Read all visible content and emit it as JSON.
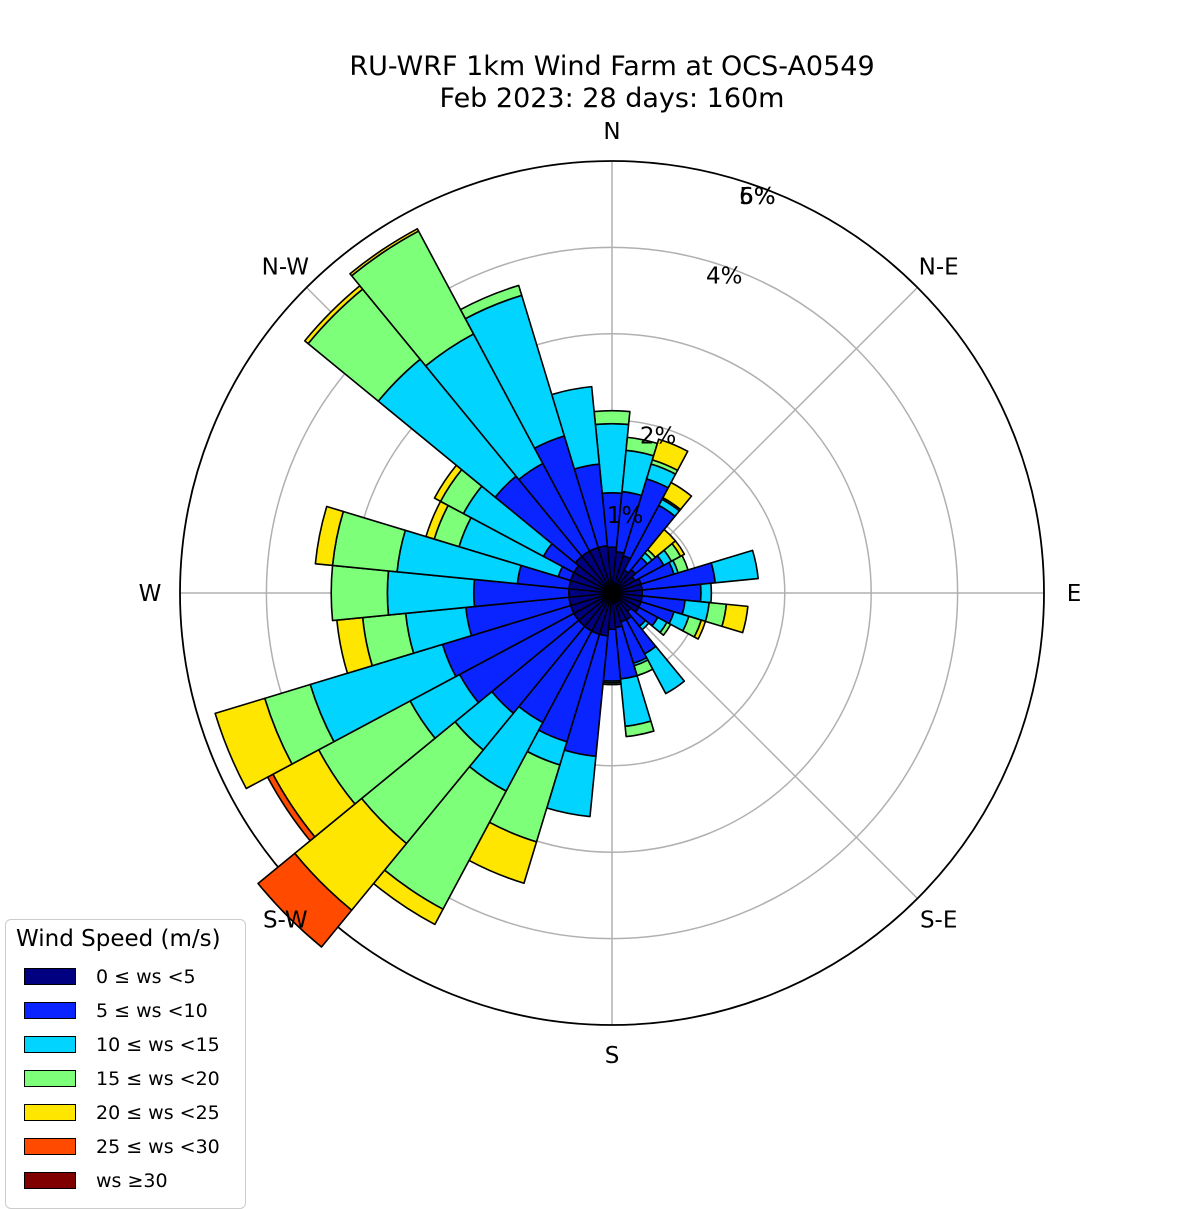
{
  "chart_data": {
    "type": "windrose",
    "title": "RU-WRF 1km Wind Farm at OCS-A0549",
    "subtitle": "Feb 2023: 28 days: 160m",
    "direction_labels": [
      "N",
      "N-E",
      "E",
      "S-E",
      "S",
      "S-W",
      "W",
      "N-W"
    ],
    "radial_ticks": [
      {
        "value": 1,
        "label": "1%"
      },
      {
        "value": 2,
        "label": "2%"
      },
      {
        "value": 4,
        "label": "4%"
      },
      {
        "value": 5,
        "label": "5%"
      },
      {
        "value": 6,
        "label": "6%"
      }
    ],
    "legend_title": "Wind Speed (m/s)",
    "speed_bins": [
      {
        "label": "0 ≤  ws <5",
        "color": "#000080"
      },
      {
        "label": "5 ≤  ws <10",
        "color": "#0a24ff"
      },
      {
        "label": "10 ≤  ws <15",
        "color": "#00d4ff"
      },
      {
        "label": "15 ≤  ws <20",
        "color": "#7dff7a"
      },
      {
        "label": "20 ≤  ws <25",
        "color": "#ffe600"
      },
      {
        "label": "25 ≤  ws <30",
        "color": "#ff4a00"
      },
      {
        "label": "ws  ≥30",
        "color": "#800000"
      }
    ],
    "units": "percent of observations",
    "sector_width_deg": 11.25,
    "sectors": [
      {
        "dir": 0,
        "values": [
          0.53,
          0.63,
          0.8,
          0.15,
          0,
          0,
          0
        ]
      },
      {
        "dir": 11.25,
        "values": [
          0.48,
          0.7,
          0.48,
          0.15,
          0,
          0,
          0
        ]
      },
      {
        "dir": 22.5,
        "values": [
          0.45,
          0.93,
          0.18,
          0.05,
          0.25,
          0,
          0
        ]
      },
      {
        "dir": 33.75,
        "values": [
          0.3,
          0.85,
          0.08,
          0.02,
          0.2,
          0,
          0
        ]
      },
      {
        "dir": 45,
        "values": [
          0.35,
          0.18,
          0.07,
          0.05,
          0.3,
          0,
          0
        ]
      },
      {
        "dir": 56.25,
        "values": [
          0.3,
          0.38,
          0.1,
          0.12,
          0.05,
          0,
          0
        ]
      },
      {
        "dir": 67.5,
        "values": [
          0.35,
          0.4,
          0.05,
          0.12,
          0,
          0,
          0
        ]
      },
      {
        "dir": 78.75,
        "values": [
          0.35,
          0.85,
          0.5,
          0,
          0,
          0,
          0
        ]
      },
      {
        "dir": 90,
        "values": [
          0.35,
          0.68,
          0.12,
          0,
          0,
          0,
          0
        ]
      },
      {
        "dir": 101.25,
        "values": [
          0.35,
          0.5,
          0.28,
          0.2,
          0.25,
          0,
          0
        ]
      },
      {
        "dir": 112.5,
        "values": [
          0.35,
          0.4,
          0.18,
          0.15,
          0.05,
          0,
          0
        ]
      },
      {
        "dir": 123.75,
        "values": [
          0.35,
          0.25,
          0.12,
          0.05,
          0,
          0,
          0
        ]
      },
      {
        "dir": 135,
        "values": [
          0.28,
          0.22,
          0.05,
          0,
          0,
          0,
          0
        ]
      },
      {
        "dir": 146.25,
        "values": [
          0.35,
          0.45,
          0.52,
          0,
          0,
          0,
          0
        ]
      },
      {
        "dir": 157.5,
        "values": [
          0.35,
          0.5,
          0.03,
          0.12,
          0,
          0,
          0
        ]
      },
      {
        "dir": 168.75,
        "values": [
          0.4,
          0.6,
          0.55,
          0.12,
          0,
          0,
          0
        ]
      },
      {
        "dir": 180,
        "values": [
          0.42,
          0.6,
          0.02,
          0.02,
          0,
          0,
          0
        ]
      },
      {
        "dir": 191.25,
        "values": [
          0.5,
          1.4,
          0.7,
          0,
          0,
          0,
          0
        ]
      },
      {
        "dir": 202.5,
        "values": [
          0.5,
          1.3,
          0.28,
          0.93,
          0.5,
          0,
          0
        ]
      },
      {
        "dir": 213.75,
        "values": [
          0.5,
          1.2,
          0.9,
          1.55,
          0.2,
          0,
          0
        ]
      },
      {
        "dir": 225,
        "values": [
          0.5,
          1.3,
          0.55,
          1.4,
          1.0,
          0.55,
          0
        ]
      },
      {
        "dir": 236.25,
        "values": [
          0.5,
          1.5,
          0.65,
          1.2,
          0.6,
          0.07,
          0
        ]
      },
      {
        "dir": 247.5,
        "values": [
          0.5,
          1.55,
          1.6,
          0.55,
          0.6,
          0,
          0
        ]
      },
      {
        "dir": 258.75,
        "values": [
          0.5,
          1.2,
          0.7,
          0.5,
          0.3,
          0,
          0
        ]
      },
      {
        "dir": 270,
        "values": [
          0.5,
          1.1,
          1.0,
          0.65,
          0,
          0,
          0
        ]
      },
      {
        "dir": 281.25,
        "values": [
          0.5,
          0.6,
          1.4,
          0.75,
          0.2,
          0,
          0
        ]
      },
      {
        "dir": 292.5,
        "values": [
          0.5,
          0.15,
          1.2,
          0.3,
          0.1,
          0,
          0
        ]
      },
      {
        "dir": 303.75,
        "values": [
          0.5,
          0.4,
          1.05,
          0.3,
          0.08,
          0,
          0
        ]
      },
      {
        "dir": 315,
        "values": [
          0.55,
          1.2,
          1.75,
          1.05,
          0.05,
          0,
          0
        ]
      },
      {
        "dir": 326.25,
        "values": [
          0.55,
          1.15,
          1.7,
          1.35,
          0.03,
          0,
          0
        ]
      },
      {
        "dir": 337.5,
        "values": [
          0.55,
          1.35,
          1.7,
          0.12,
          0,
          0,
          0
        ]
      },
      {
        "dir": 348.75,
        "values": [
          0.55,
          0.95,
          0.9,
          0,
          0,
          0,
          0
        ]
      }
    ]
  }
}
